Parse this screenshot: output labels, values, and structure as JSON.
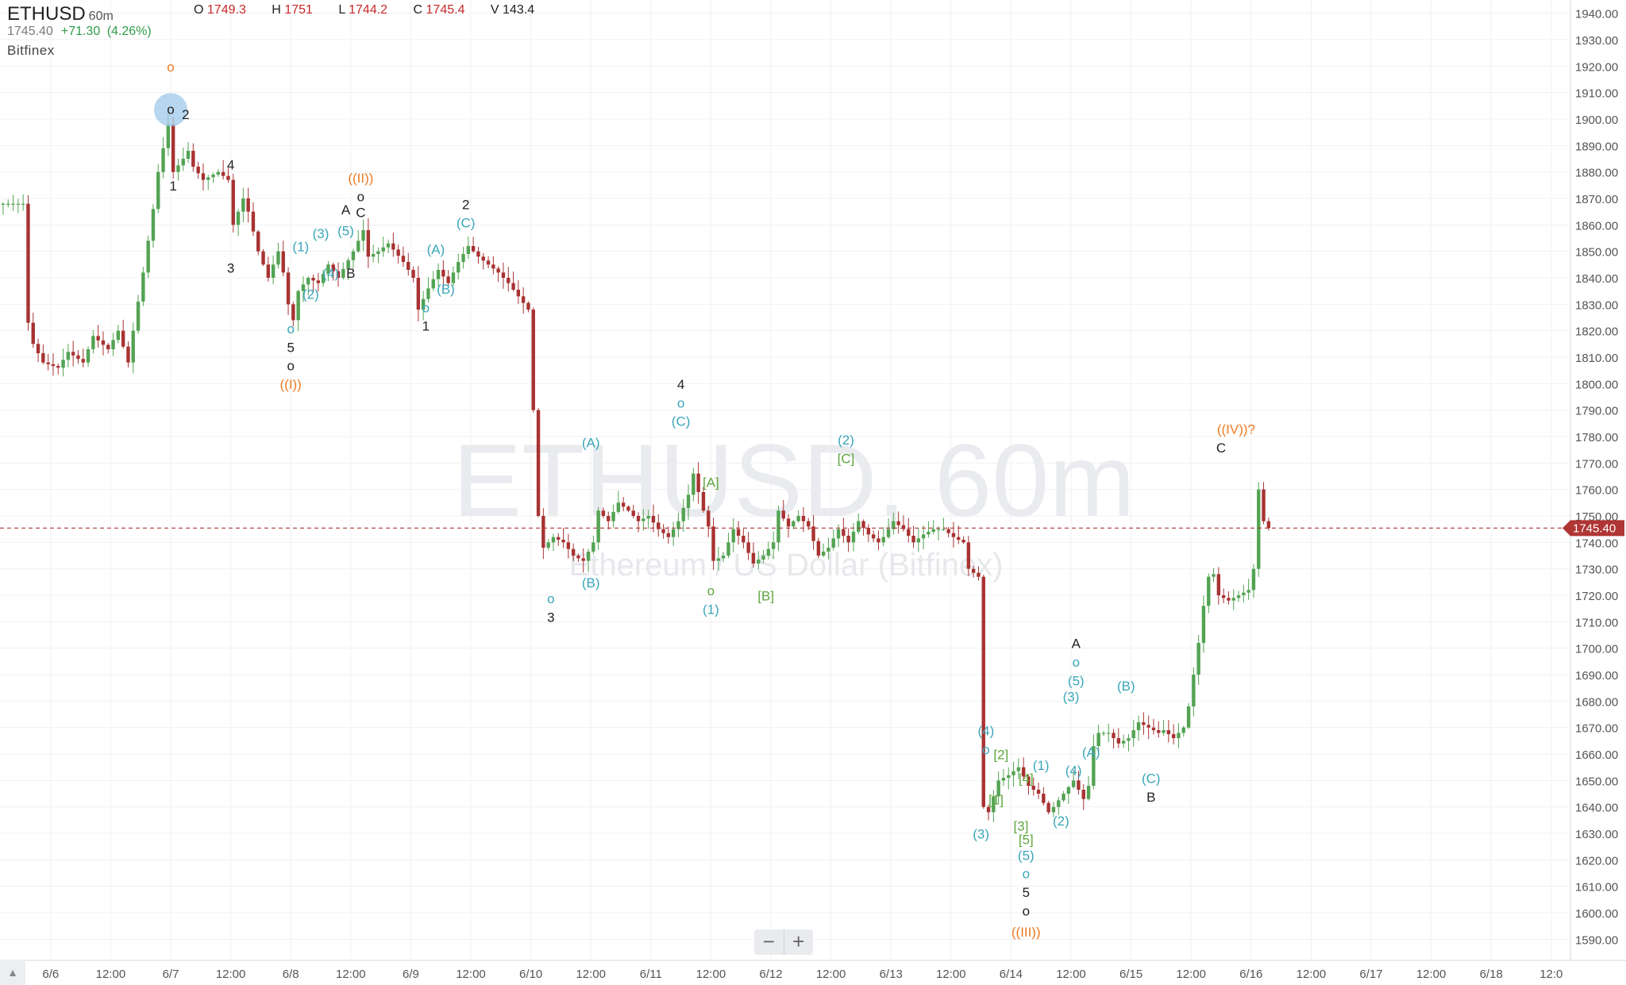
{
  "header": {
    "symbol": "ETHUSD",
    "timeframe": "60m",
    "open_label": "O",
    "open": "1749.3",
    "high_label": "H",
    "high": "1751",
    "low_label": "L",
    "low": "1744.2",
    "close_label": "C",
    "close": "1745.4",
    "volume_label": "V",
    "volume": "143.4",
    "last_price": "1745.40",
    "change": "+71.30",
    "change_pct": "(4.26%)",
    "exchange": "Bitfinex"
  },
  "watermark": {
    "title": "ETHUSD, 60m",
    "subtitle": "Ethereum / US Dollar (Bitfinex)"
  },
  "zoom": {
    "minus": "−",
    "plus": "+"
  },
  "corner_icon": "chevron-up-icon",
  "colors": {
    "up": "#53a353",
    "down": "#a83232",
    "wave_cyan": "#3aa6b9",
    "wave_green": "#5ea63e",
    "wave_orange": "#f07a22",
    "wave_black": "#222222",
    "price_tag": "#b03535",
    "highlight_circle": "#9fc8ea"
  },
  "chart_data": {
    "type": "candlestick",
    "title": "ETHUSD, 60m",
    "xlabel": "",
    "ylabel": "",
    "ylim": [
      1582,
      1945
    ],
    "y_ticks": [
      "1590.00",
      "1600.00",
      "1610.00",
      "1620.00",
      "1630.00",
      "1640.00",
      "1650.00",
      "1660.00",
      "1670.00",
      "1680.00",
      "1690.00",
      "1700.00",
      "1710.00",
      "1720.00",
      "1730.00",
      "1740.00",
      "1750.00",
      "1760.00",
      "1770.00",
      "1780.00",
      "1790.00",
      "1800.00",
      "1810.00",
      "1820.00",
      "1830.00",
      "1840.00",
      "1850.00",
      "1860.00",
      "1870.00",
      "1880.00",
      "1890.00",
      "1900.00",
      "1910.00",
      "1920.00",
      "1930.00",
      "1940.00"
    ],
    "x_ticks": [
      {
        "label": "6/6",
        "h": -24
      },
      {
        "label": "12:00",
        "h": -12
      },
      {
        "label": "6/7",
        "h": 0
      },
      {
        "label": "12:00",
        "h": 12
      },
      {
        "label": "6/8",
        "h": 24
      },
      {
        "label": "12:00",
        "h": 36
      },
      {
        "label": "6/9",
        "h": 48
      },
      {
        "label": "12:00",
        "h": 60
      },
      {
        "label": "6/10",
        "h": 72
      },
      {
        "label": "12:00",
        "h": 84
      },
      {
        "label": "6/11",
        "h": 96
      },
      {
        "label": "12:00",
        "h": 108
      },
      {
        "label": "6/12",
        "h": 120
      },
      {
        "label": "12:00",
        "h": 132
      },
      {
        "label": "6/13",
        "h": 144
      },
      {
        "label": "12:00",
        "h": 156
      },
      {
        "label": "6/14",
        "h": 168
      },
      {
        "label": "12:00",
        "h": 180
      },
      {
        "label": "6/15",
        "h": 192
      },
      {
        "label": "12:00",
        "h": 204
      },
      {
        "label": "6/16",
        "h": 216
      },
      {
        "label": "12:00",
        "h": 228
      },
      {
        "label": "6/17",
        "h": 240
      },
      {
        "label": "12:00",
        "h": 252
      },
      {
        "label": "6/18",
        "h": 264
      },
      {
        "label": "12:0",
        "h": 276
      }
    ],
    "last_price": 1745.4,
    "last_price_label": "1745.40",
    "x_unit": "hours from 6/7 00:00",
    "price_path": [
      [
        -34,
        1868
      ],
      [
        -29,
        1868
      ],
      [
        -28,
        1823
      ],
      [
        -27,
        1815
      ],
      [
        -25,
        1808
      ],
      [
        -22,
        1806
      ],
      [
        -20,
        1812
      ],
      [
        -17,
        1808
      ],
      [
        -15,
        1818
      ],
      [
        -12,
        1813
      ],
      [
        -10,
        1820
      ],
      [
        -8,
        1808
      ],
      [
        -7,
        1820
      ],
      [
        -5,
        1842
      ],
      [
        -3,
        1866
      ],
      [
        -2,
        1880
      ],
      [
        0,
        1898
      ],
      [
        1,
        1880
      ],
      [
        3,
        1885
      ],
      [
        4,
        1888
      ],
      [
        5,
        1882
      ],
      [
        7,
        1877
      ],
      [
        10,
        1880
      ],
      [
        12,
        1877
      ],
      [
        13,
        1860
      ],
      [
        15,
        1870
      ],
      [
        16,
        1865
      ],
      [
        18,
        1850
      ],
      [
        20,
        1840
      ],
      [
        22,
        1850
      ],
      [
        23,
        1842
      ],
      [
        24,
        1830
      ],
      [
        25,
        1824
      ],
      [
        26,
        1835
      ],
      [
        28,
        1840
      ],
      [
        30,
        1838
      ],
      [
        32,
        1845
      ],
      [
        34,
        1840
      ],
      [
        37,
        1850
      ],
      [
        39,
        1858
      ],
      [
        40,
        1848
      ],
      [
        42,
        1850
      ],
      [
        44,
        1853
      ],
      [
        47,
        1846
      ],
      [
        49,
        1840
      ],
      [
        50,
        1828
      ],
      [
        52,
        1836
      ],
      [
        54,
        1843
      ],
      [
        56,
        1838
      ],
      [
        58,
        1846
      ],
      [
        60,
        1852
      ],
      [
        62,
        1848
      ],
      [
        64,
        1845
      ],
      [
        66,
        1842
      ],
      [
        68,
        1838
      ],
      [
        70,
        1833
      ],
      [
        72,
        1828
      ],
      [
        73,
        1790
      ],
      [
        74,
        1750
      ],
      [
        75,
        1738
      ],
      [
        77,
        1742
      ],
      [
        79,
        1740
      ],
      [
        81,
        1735
      ],
      [
        83,
        1733
      ],
      [
        85,
        1740
      ],
      [
        86,
        1752
      ],
      [
        88,
        1748
      ],
      [
        90,
        1755
      ],
      [
        92,
        1752
      ],
      [
        94,
        1748
      ],
      [
        96,
        1750
      ],
      [
        98,
        1745
      ],
      [
        100,
        1742
      ],
      [
        102,
        1748
      ],
      [
        104,
        1758
      ],
      [
        105,
        1766
      ],
      [
        107,
        1752
      ],
      [
        108,
        1746
      ],
      [
        109,
        1733
      ],
      [
        111,
        1735
      ],
      [
        113,
        1745
      ],
      [
        115,
        1740
      ],
      [
        117,
        1732
      ],
      [
        119,
        1735
      ],
      [
        121,
        1740
      ],
      [
        122,
        1752
      ],
      [
        124,
        1746
      ],
      [
        126,
        1750
      ],
      [
        128,
        1746
      ],
      [
        130,
        1735
      ],
      [
        132,
        1738
      ],
      [
        134,
        1745
      ],
      [
        136,
        1740
      ],
      [
        138,
        1748
      ],
      [
        140,
        1743
      ],
      [
        142,
        1740
      ],
      [
        143,
        1742
      ],
      [
        145,
        1748
      ],
      [
        147,
        1745
      ],
      [
        149,
        1740
      ],
      [
        151,
        1743
      ],
      [
        153,
        1745
      ],
      [
        155,
        1745
      ],
      [
        157,
        1742
      ],
      [
        159,
        1740
      ],
      [
        160,
        1730
      ],
      [
        162,
        1727
      ],
      [
        163,
        1640
      ],
      [
        164,
        1638
      ],
      [
        166,
        1650
      ],
      [
        168,
        1652
      ],
      [
        170,
        1655
      ],
      [
        172,
        1648
      ],
      [
        174,
        1645
      ],
      [
        176,
        1638
      ],
      [
        177,
        1640
      ],
      [
        179,
        1645
      ],
      [
        181,
        1650
      ],
      [
        183,
        1643
      ],
      [
        184,
        1648
      ],
      [
        185,
        1663
      ],
      [
        186,
        1668
      ],
      [
        188,
        1668
      ],
      [
        190,
        1664
      ],
      [
        192,
        1666
      ],
      [
        194,
        1672
      ],
      [
        196,
        1670
      ],
      [
        198,
        1668
      ],
      [
        199,
        1669
      ],
      [
        201,
        1666
      ],
      [
        203,
        1670
      ],
      [
        204,
        1678
      ],
      [
        205,
        1690
      ],
      [
        206,
        1702
      ],
      [
        207,
        1716
      ],
      [
        208,
        1727
      ],
      [
        209,
        1728
      ],
      [
        210,
        1720
      ],
      [
        212,
        1718
      ],
      [
        214,
        1720
      ],
      [
        216,
        1722
      ],
      [
        217,
        1730
      ],
      [
        218,
        1760
      ],
      [
        219,
        1748
      ],
      [
        220,
        1745.4
      ]
    ],
    "wave_labels": [
      {
        "h": 0,
        "p": 1918,
        "text": "o",
        "color": "orange"
      },
      {
        "h": 0,
        "p": 1902,
        "text": "o",
        "color": "black",
        "highlight": true
      },
      {
        "h": 3,
        "p": 1900,
        "text": "2",
        "color": "black"
      },
      {
        "h": 0.5,
        "p": 1873,
        "text": "1",
        "color": "black"
      },
      {
        "h": 12,
        "p": 1881,
        "text": "4",
        "color": "black"
      },
      {
        "h": 12,
        "p": 1842,
        "text": "3",
        "color": "black"
      },
      {
        "h": 24,
        "p": 1819,
        "text": "o",
        "color": "cyan"
      },
      {
        "h": 24,
        "p": 1812,
        "text": "5",
        "color": "black"
      },
      {
        "h": 24,
        "p": 1805,
        "text": "o",
        "color": "black"
      },
      {
        "h": 24,
        "p": 1798,
        "text": "((I))",
        "color": "orange"
      },
      {
        "h": 26,
        "p": 1850,
        "text": "(1)",
        "color": "cyan"
      },
      {
        "h": 28,
        "p": 1832,
        "text": "(2)",
        "color": "cyan"
      },
      {
        "h": 30,
        "p": 1855,
        "text": "(3)",
        "color": "cyan"
      },
      {
        "h": 32,
        "p": 1840,
        "text": "(4)",
        "color": "cyan"
      },
      {
        "h": 35,
        "p": 1864,
        "text": "A",
        "color": "black"
      },
      {
        "h": 35,
        "p": 1856,
        "text": "(5)",
        "color": "cyan"
      },
      {
        "h": 36,
        "p": 1840,
        "text": "B",
        "color": "black"
      },
      {
        "h": 38,
        "p": 1876,
        "text": "((II))",
        "color": "orange"
      },
      {
        "h": 38,
        "p": 1869,
        "text": "o",
        "color": "black"
      },
      {
        "h": 38,
        "p": 1863,
        "text": "C",
        "color": "black"
      },
      {
        "h": 53,
        "p": 1849,
        "text": "(A)",
        "color": "cyan"
      },
      {
        "h": 51,
        "p": 1827,
        "text": "o",
        "color": "cyan"
      },
      {
        "h": 51,
        "p": 1820,
        "text": "1",
        "color": "black"
      },
      {
        "h": 55,
        "p": 1834,
        "text": "(B)",
        "color": "cyan"
      },
      {
        "h": 59,
        "p": 1866,
        "text": "2",
        "color": "black"
      },
      {
        "h": 59,
        "p": 1859,
        "text": "(C)",
        "color": "cyan"
      },
      {
        "h": 76,
        "p": 1717,
        "text": "o",
        "color": "cyan"
      },
      {
        "h": 76,
        "p": 1710,
        "text": "3",
        "color": "black"
      },
      {
        "h": 84,
        "p": 1776,
        "text": "(A)",
        "color": "cyan"
      },
      {
        "h": 84,
        "p": 1723,
        "text": "(B)",
        "color": "cyan"
      },
      {
        "h": 102,
        "p": 1798,
        "text": "4",
        "color": "black"
      },
      {
        "h": 102,
        "p": 1791,
        "text": "o",
        "color": "cyan"
      },
      {
        "h": 102,
        "p": 1784,
        "text": "(C)",
        "color": "cyan"
      },
      {
        "h": 108,
        "p": 1761,
        "text": "[A]",
        "color": "green"
      },
      {
        "h": 108,
        "p": 1720,
        "text": "o",
        "color": "green"
      },
      {
        "h": 108,
        "p": 1713,
        "text": "(1)",
        "color": "cyan"
      },
      {
        "h": 119,
        "p": 1718,
        "text": "[B]",
        "color": "green"
      },
      {
        "h": 135,
        "p": 1777,
        "text": "(2)",
        "color": "cyan"
      },
      {
        "h": 135,
        "p": 1770,
        "text": "[C]",
        "color": "green"
      },
      {
        "h": 163,
        "p": 1667,
        "text": "(4)",
        "color": "cyan"
      },
      {
        "h": 163,
        "p": 1660,
        "text": "o",
        "color": "cyan"
      },
      {
        "h": 166,
        "p": 1658,
        "text": "[2]",
        "color": "green"
      },
      {
        "h": 165,
        "p": 1641,
        "text": "[1]",
        "color": "green"
      },
      {
        "h": 162,
        "p": 1628,
        "text": "(3)",
        "color": "cyan"
      },
      {
        "h": 171,
        "p": 1649,
        "text": "[4]",
        "color": "green"
      },
      {
        "h": 170,
        "p": 1631,
        "text": "[3]",
        "color": "green"
      },
      {
        "h": 171,
        "p": 1626,
        "text": "[5]",
        "color": "green"
      },
      {
        "h": 171,
        "p": 1620,
        "text": "(5)",
        "color": "cyan"
      },
      {
        "h": 171,
        "p": 1613,
        "text": "o",
        "color": "cyan"
      },
      {
        "h": 171,
        "p": 1606,
        "text": "5",
        "color": "black"
      },
      {
        "h": 171,
        "p": 1599,
        "text": "o",
        "color": "black"
      },
      {
        "h": 171,
        "p": 1591,
        "text": "((III))",
        "color": "orange"
      },
      {
        "h": 174,
        "p": 1654,
        "text": "(1)",
        "color": "cyan"
      },
      {
        "h": 178,
        "p": 1633,
        "text": "(2)",
        "color": "cyan"
      },
      {
        "h": 180,
        "p": 1680,
        "text": "(3)",
        "color": "cyan"
      },
      {
        "h": 180.5,
        "p": 1652,
        "text": "(4)",
        "color": "cyan"
      },
      {
        "h": 181,
        "p": 1700,
        "text": "A",
        "color": "black"
      },
      {
        "h": 181,
        "p": 1693,
        "text": "o",
        "color": "cyan"
      },
      {
        "h": 181,
        "p": 1686,
        "text": "(5)",
        "color": "cyan"
      },
      {
        "h": 184,
        "p": 1659,
        "text": "(A)",
        "color": "cyan"
      },
      {
        "h": 191,
        "p": 1684,
        "text": "(B)",
        "color": "cyan"
      },
      {
        "h": 196,
        "p": 1649,
        "text": "(C)",
        "color": "cyan"
      },
      {
        "h": 196,
        "p": 1642,
        "text": "B",
        "color": "black"
      },
      {
        "h": 213,
        "p": 1781,
        "text": "((IV))?",
        "color": "orange"
      },
      {
        "h": 210,
        "p": 1774,
        "text": "C",
        "color": "black"
      }
    ]
  }
}
